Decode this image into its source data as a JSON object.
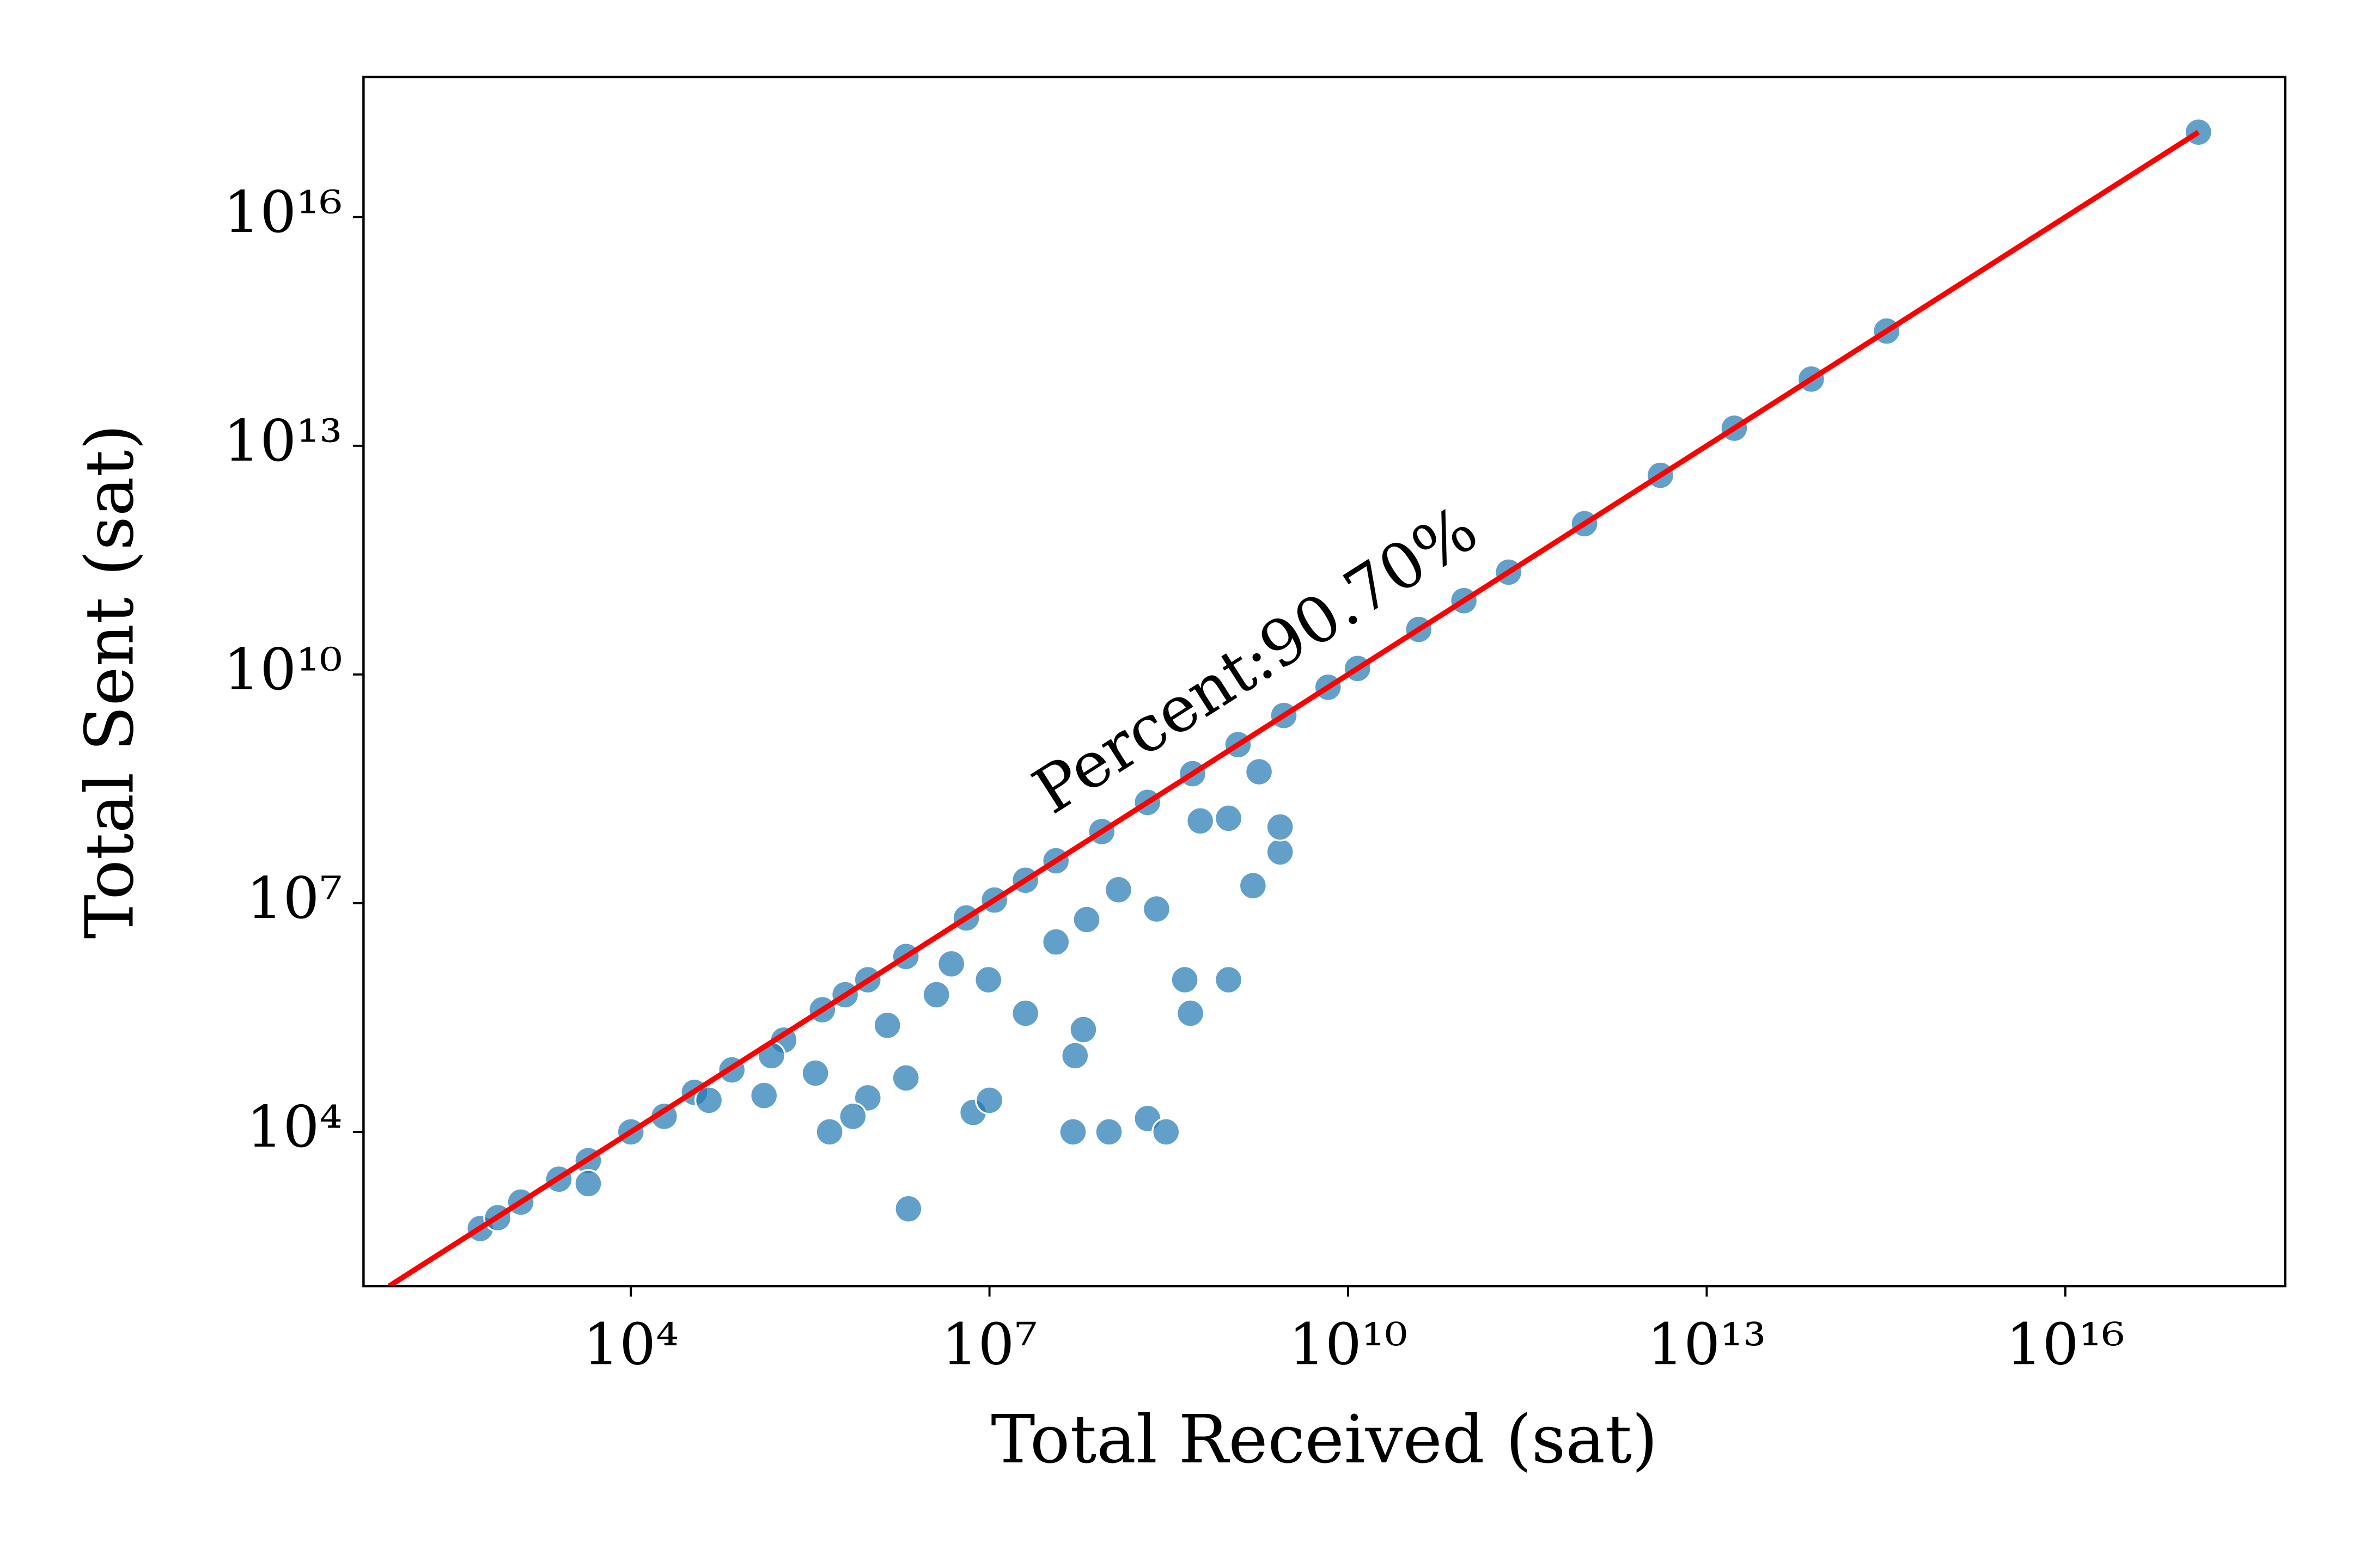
{
  "chart_data": {
    "type": "scatter",
    "xlabel": "Total Received (sat)",
    "ylabel": "Total Sent (sat)",
    "annotation": "Percent:90.70%",
    "xscale": "log",
    "yscale": "log",
    "xlim": [
      58,
      6.9e+17
    ],
    "ylim": [
      95,
      6.9e+17
    ],
    "xticks": [
      {
        "value": 10000.0,
        "label": "10⁴"
      },
      {
        "value": 10000000.0,
        "label": "10⁷"
      },
      {
        "value": 10000000000.0,
        "label": "10¹⁰"
      },
      {
        "value": 10000000000000.0,
        "label": "10¹³"
      },
      {
        "value": 1e+16,
        "label": "10¹⁶"
      }
    ],
    "yticks": [
      {
        "value": 10000.0,
        "label": "10⁴"
      },
      {
        "value": 10000000.0,
        "label": "10⁷"
      },
      {
        "value": 10000000000.0,
        "label": "10¹⁰"
      },
      {
        "value": 10000000000000.0,
        "label": "10¹³"
      },
      {
        "value": 1e+16,
        "label": "10¹⁶"
      }
    ],
    "series": [
      {
        "color": "#1f77b4",
        "x": [
          550,
          770,
          1200,
          2500,
          4400,
          4400,
          10000,
          19000,
          34000,
          70000,
          130000.0,
          190000.0,
          400000.0,
          620000.0,
          350000.0,
          960000.0,
          2000000.0,
          3600000.0,
          6400000.0,
          11000000.0,
          20000000.0,
          36000000.0,
          87000000.0,
          210000000.0,
          500000000.0,
          1200000000.0,
          2900000000.0,
          6800000000.0,
          12000000000.0,
          39000000000.0,
          93000000000.0,
          220000000000.0,
          950000000000.0,
          4100000000000.0,
          17000000000000.0,
          75000000000000.0,
          320000000000000.0,
          1.3e+17,
          460000.0,
          2100000.0,
          7300000.0,
          10000000.0,
          50000000.0,
          100000000.0,
          210000000.0,
          300000000.0,
          52000000.0,
          430000000.0,
          1000000000.0,
          480000000.0,
          1600000000.0,
          2700000000.0,
          2700000000.0,
          250000000.0,
          65000000.0,
          9800000.0,
          20000000.0,
          61000000.0,
          2000000.0,
          960000.0,
          720000.0,
          1800000000.0,
          1000000000.0,
          580000000.0,
          120000000.0,
          36000000.0,
          4800000.0,
          1400000.0,
          150000.0,
          45000
        ],
        "y": [
          540,
          750,
          1200,
          2400,
          4200,
          2100,
          10000,
          16000,
          33000,
          65000,
          30000,
          160000.0,
          400000.0,
          630000.0,
          59000,
          990000.0,
          2000000.0,
          630000.0,
          6400000.0,
          11000000.0,
          20000000.0,
          36000000.0,
          87000000.0,
          210000000.0,
          500000000.0,
          1200000000.0,
          2900000000.0,
          6800000000.0,
          12000000000.0,
          39000000000.0,
          93000000000.0,
          220000000000.0,
          950000000000.0,
          4100000000000.0,
          17000000000000.0,
          75000000000000.0,
          320000000000000.0,
          1.3e+17,
          10000,
          980,
          18000,
          26000,
          10000,
          10000,
          15000,
          10000,
          100000.0,
          990000.0,
          990000.0,
          360000.0,
          17000000.0,
          47000000.0,
          100000000.0,
          8400000.0,
          6100000.0,
          990000.0,
          360000.0,
          220000.0,
          51000,
          28000,
          16000,
          530000000.0,
          130000000.0,
          120000000.0,
          15000000.0,
          3100000.0,
          1600000.0,
          250000.0,
          100000.0,
          26000
        ]
      }
    ],
    "reference_line": {
      "color": "#ff0000",
      "x": [
        95,
        1.3e+17
      ],
      "y": [
        95,
        1.3e+17
      ]
    }
  }
}
